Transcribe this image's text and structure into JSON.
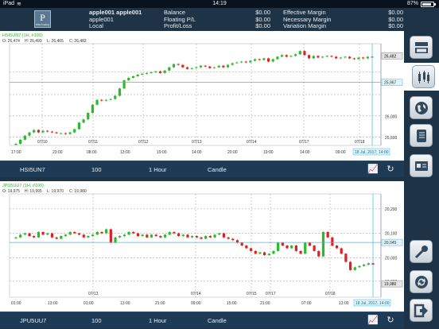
{
  "status_bar": {
    "device": "iPad",
    "wifi_icon": "wifi-icon",
    "time": "14:19",
    "battery": "87%",
    "battery_level": 0.87
  },
  "account": {
    "user_name": "apple001 apple001",
    "account_id": "apple001",
    "account_type": "Local",
    "logo_letter": "P",
    "logo_caption": "PSS Trading",
    "left_metrics": [
      {
        "label": "Balance",
        "value": "$0.00"
      },
      {
        "label": "Floating P/L",
        "value": "$0.00"
      },
      {
        "label": "Profit/Loss",
        "value": "$0.00"
      }
    ],
    "right_metrics": [
      {
        "label": "Effective Margin",
        "value": "$0.00"
      },
      {
        "label": "Necessary Margin",
        "value": "$0.00"
      },
      {
        "label": "Variation Margin",
        "value": "$0.00"
      }
    ]
  },
  "charts": [
    {
      "header": "HSI5UN7 (1H, #100)",
      "ohlc": {
        "O": "O: 26,474",
        "H": "H: 26,493",
        "L": "L: 26,465",
        "C": "C: 26,482"
      },
      "symbol": "HSI5UN7",
      "quantity": "100",
      "timeframe": "1 Hour",
      "chart_style": "Candle",
      "last_price_label": "26,482",
      "crosshair_price_label": "25,967",
      "crosshair_time_label": "18 Jul, 2017, 14:00",
      "y_ticks": [
        "26,000",
        "25,500"
      ],
      "x_ticks": [
        "17:00",
        "23:00",
        "08:00",
        "13:00",
        "19:00",
        "14:00",
        "20:00",
        "19:00",
        "14:00",
        "09:00",
        "15:00"
      ],
      "date_labels": [
        "07/10",
        "07/11",
        "07/12",
        "07/13",
        "07/14",
        "07/17",
        "07/18"
      ],
      "chart_data": {
        "type": "candlestick",
        "ylim": [
          25400,
          26650
        ],
        "close": [
          25420,
          25470,
          25520,
          25560,
          25590,
          25560,
          25580,
          25570,
          25560,
          25550,
          25550,
          25540,
          25560,
          25600,
          25680,
          25720,
          25800,
          25900,
          25960,
          25950,
          25960,
          25970,
          26010,
          26100,
          26200,
          26230,
          26250,
          26270,
          26280,
          26290,
          26300,
          26310,
          26290,
          26320,
          26360,
          26400,
          26390,
          26360,
          26340,
          26350,
          26360,
          26380,
          26370,
          26350,
          26360,
          26380,
          26360,
          26390,
          26410,
          26420,
          26430,
          26420,
          26440,
          26460,
          26450,
          26470,
          26430,
          26460,
          26490,
          26510,
          26490,
          26500,
          26520,
          26560,
          26510,
          26470,
          26500,
          26480,
          26490,
          26500,
          26490,
          26470,
          26480,
          26490,
          26470,
          26460,
          26480,
          26470,
          26490,
          26482
        ]
      }
    },
    {
      "header": "JPU5UU7 (1H, #100)",
      "ohlc": {
        "O": "O: 19,975",
        "H": "H: 19,995",
        "L": "L: 19,970",
        "C": "C: 19,980"
      },
      "symbol": "JPU5UU7",
      "quantity": "100",
      "timeframe": "1 Hour",
      "chart_style": "Candle",
      "last_price_label": "19,980",
      "crosshair_price_label": "20,045",
      "crosshair_time_label": "18 Jul, 2017, 14:00",
      "y_ticks": [
        "20,200",
        "20,100",
        "20,000",
        "19,900"
      ],
      "x_ticks": [
        "01:00",
        "13:00",
        "01:00",
        "13:00",
        "21:00",
        "09:00",
        "15:00",
        "21:00",
        "07:00",
        "13:00",
        "19:00",
        "03:00"
      ],
      "date_labels": [
        "07/13",
        "07/14",
        "07/15",
        "07/17",
        "07/18"
      ],
      "chart_data": {
        "type": "candlestick",
        "ylim": [
          19860,
          20240
        ],
        "close": [
          20080,
          20090,
          20095,
          20085,
          20080,
          20100,
          20090,
          20095,
          20080,
          20075,
          20085,
          20090,
          20100,
          20095,
          20090,
          20080,
          20085,
          20090,
          20100,
          20095,
          20110,
          20060,
          20080,
          20085,
          20090,
          20100,
          20095,
          20085,
          20090,
          20080,
          20090,
          20085,
          20080,
          20090,
          20100,
          20095,
          20085,
          20090,
          20080,
          20085,
          20080,
          20075,
          20085,
          20080,
          20090,
          20095,
          20080,
          20075,
          20070,
          20060,
          20050,
          20040,
          20030,
          20020,
          20025,
          20015,
          20020,
          20030,
          20060,
          20050,
          20040,
          20050,
          20030,
          20020,
          20060,
          20050,
          20030,
          20010,
          20100,
          20080,
          20050,
          20040,
          20020,
          19990,
          19960,
          19970,
          19975,
          19980,
          19985,
          19980
        ]
      }
    }
  ],
  "sidebar": {
    "buttons": [
      {
        "name": "layout-chart-button",
        "icon": "chart-window-icon"
      },
      {
        "name": "indicator-button",
        "icon": "candlestick-icon"
      },
      {
        "name": "globe-button",
        "icon": "globe-icon"
      },
      {
        "name": "notebook-button",
        "icon": "notebook-icon"
      },
      {
        "name": "account-card-button",
        "icon": "account-card-icon"
      },
      {
        "name": "key-button",
        "icon": "key-icon"
      },
      {
        "name": "refresh-button",
        "icon": "refresh-icon"
      },
      {
        "name": "logout-button",
        "icon": "logout-icon"
      }
    ]
  },
  "colors": {
    "up": "#2eb82e",
    "down": "#e02020",
    "crosshair": "#33bfe6",
    "background": "#1f3346",
    "footer": "#1e3a55"
  }
}
